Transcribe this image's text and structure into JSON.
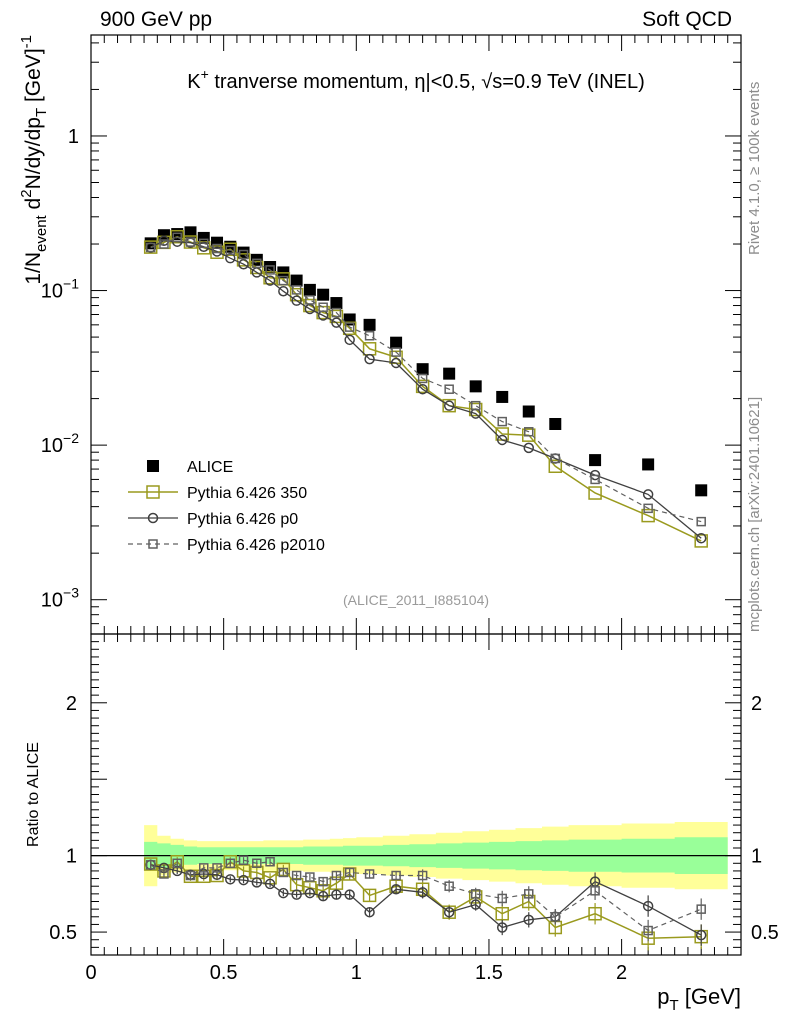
{
  "header": {
    "left": "900 GeV pp",
    "right": "Soft QCD"
  },
  "side_labels": {
    "rivet": "Rivet 4.1.0, ≥ 100k events",
    "mcplots": "mcplots.cern.ch [arXiv:2401.10621]"
  },
  "colors": {
    "data": "#000000",
    "p350": "#9a9a1e",
    "p0": "#404040",
    "p2010": "#606060",
    "band_inner": "#99ff99",
    "band_outer": "#ffff99",
    "ref_line": "#000000",
    "watermark": "#9a9a9a"
  },
  "chart_data": [
    {
      "type": "scatter",
      "panel": "main",
      "title_parts": {
        "particle": "K",
        "charge": "+",
        "text": "tranverse momentum,",
        "eta": "η|<0.5,",
        "sqrt": "√s=0.9 TeV (INEL)"
      },
      "ylabel_parts": {
        "a": "1/N",
        "a_sub": "event",
        "b": " d",
        "b_sup": "2",
        "c": "N/dy/dp",
        "c_sub": "T",
        "d": " [GeV]",
        "d_sup": "-1"
      },
      "yscale": "log",
      "ylim": [
        0.0006,
        4.5
      ],
      "xlim": [
        0,
        2.45
      ],
      "ytick_labels": [
        {
          "value": 0.001,
          "base": "10",
          "exp": "−3"
        },
        {
          "value": 0.01,
          "base": "10",
          "exp": "−2"
        },
        {
          "value": 0.1,
          "base": "10",
          "exp": "−1"
        },
        {
          "value": 1,
          "text": "1"
        }
      ],
      "watermark": "(ALICE_2011_I885104)",
      "x": [
        0.225,
        0.275,
        0.325,
        0.375,
        0.425,
        0.475,
        0.525,
        0.575,
        0.625,
        0.675,
        0.725,
        0.775,
        0.825,
        0.875,
        0.925,
        0.975,
        1.05,
        1.15,
        1.25,
        1.35,
        1.45,
        1.55,
        1.65,
        1.75,
        1.9,
        2.1,
        2.3
      ],
      "series": [
        {
          "name": "ALICE",
          "key": "alice",
          "values": [
            0.202,
            0.228,
            0.232,
            0.238,
            0.219,
            0.204,
            0.192,
            0.176,
            0.158,
            0.142,
            0.131,
            0.116,
            0.101,
            0.094,
            0.083,
            0.065,
            0.06,
            0.046,
            0.031,
            0.029,
            0.024,
            0.0205,
            0.0165,
            0.0137,
            0.008,
            0.0075,
            0.0051
          ]
        },
        {
          "name": "Pythia 6.426 350",
          "key": "p350",
          "values": [
            0.191,
            0.205,
            0.223,
            0.206,
            0.189,
            0.177,
            0.185,
            0.158,
            0.141,
            0.121,
            0.119,
            0.094,
            0.08,
            0.072,
            0.068,
            0.057,
            0.042,
            0.037,
            0.024,
            0.018,
            0.017,
            0.0118,
            0.0116,
            0.0073,
            0.0049,
            0.0035,
            0.0024
          ]
        },
        {
          "name": "Pythia 6.426 p0",
          "key": "p0",
          "values": [
            0.19,
            0.21,
            0.207,
            0.204,
            0.192,
            0.179,
            0.162,
            0.148,
            0.131,
            0.116,
            0.099,
            0.086,
            0.076,
            0.069,
            0.062,
            0.048,
            0.036,
            0.034,
            0.023,
            0.018,
            0.016,
            0.0108,
            0.0096,
            0.0082,
            0.0064,
            0.0048,
            0.0025
          ]
        },
        {
          "name": "Pythia 6.426 p2010",
          "key": "p2010",
          "values": [
            0.19,
            0.2,
            0.221,
            0.206,
            0.202,
            0.187,
            0.182,
            0.171,
            0.15,
            0.136,
            0.116,
            0.101,
            0.087,
            0.078,
            0.072,
            0.058,
            0.051,
            0.04,
            0.027,
            0.023,
            0.018,
            0.0142,
            0.0122,
            0.0082,
            0.006,
            0.0039,
            0.0032
          ]
        }
      ]
    },
    {
      "type": "line",
      "panel": "ratio",
      "ylabel": "Ratio to ALICE",
      "xlabel_parts": {
        "p": "p",
        "sub": "T",
        "unit": " [GeV]"
      },
      "ylim": [
        0.35,
        2.45
      ],
      "xlim": [
        0,
        2.45
      ],
      "ytick_labels": [
        {
          "value": 0.5,
          "text": "0.5"
        },
        {
          "value": 1,
          "text": "1"
        },
        {
          "value": 2,
          "text": "2"
        }
      ],
      "xtick_labels": [
        {
          "value": 0,
          "text": "0"
        },
        {
          "value": 0.5,
          "text": "0.5"
        },
        {
          "value": 1,
          "text": "1"
        },
        {
          "value": 1.5,
          "text": "1.5"
        },
        {
          "value": 2,
          "text": "2"
        }
      ],
      "band_x_edges": [
        0.2,
        0.25,
        0.3,
        0.35,
        0.4,
        0.45,
        0.5,
        0.55,
        0.6,
        0.65,
        0.7,
        0.75,
        0.8,
        0.85,
        0.9,
        0.95,
        1.0,
        1.1,
        1.2,
        1.3,
        1.4,
        1.5,
        1.6,
        1.7,
        1.8,
        2.0,
        2.2,
        2.4
      ],
      "band_inner_halfwidth": [
        0.09,
        0.08,
        0.07,
        0.06,
        0.055,
        0.055,
        0.055,
        0.055,
        0.055,
        0.055,
        0.055,
        0.055,
        0.06,
        0.06,
        0.06,
        0.065,
        0.065,
        0.07,
        0.075,
        0.08,
        0.085,
        0.09,
        0.095,
        0.1,
        0.105,
        0.11,
        0.12
      ],
      "band_outer_halfwidth": [
        0.2,
        0.13,
        0.11,
        0.1,
        0.095,
        0.095,
        0.095,
        0.095,
        0.095,
        0.1,
        0.1,
        0.1,
        0.105,
        0.105,
        0.11,
        0.115,
        0.12,
        0.13,
        0.14,
        0.15,
        0.16,
        0.17,
        0.18,
        0.19,
        0.2,
        0.21,
        0.22
      ],
      "x": [
        0.225,
        0.275,
        0.325,
        0.375,
        0.425,
        0.475,
        0.525,
        0.575,
        0.625,
        0.675,
        0.725,
        0.775,
        0.825,
        0.875,
        0.925,
        0.975,
        1.05,
        1.15,
        1.25,
        1.35,
        1.45,
        1.55,
        1.65,
        1.75,
        1.9,
        2.1,
        2.3
      ],
      "series": [
        {
          "name": "Pythia 6.426 350",
          "key": "p350",
          "values": [
            0.945,
            0.9,
            0.96,
            0.865,
            0.865,
            0.87,
            0.96,
            0.9,
            0.89,
            0.855,
            0.91,
            0.81,
            0.79,
            0.77,
            0.82,
            0.88,
            0.74,
            0.8,
            0.78,
            0.63,
            0.73,
            0.62,
            0.7,
            0.53,
            0.62,
            0.46,
            0.47
          ],
          "errors": [
            0.03,
            0.03,
            0.03,
            0.03,
            0.03,
            0.03,
            0.03,
            0.03,
            0.03,
            0.03,
            0.03,
            0.03,
            0.03,
            0.03,
            0.04,
            0.04,
            0.04,
            0.04,
            0.05,
            0.05,
            0.05,
            0.06,
            0.06,
            0.06,
            0.07,
            0.08,
            0.08
          ]
        },
        {
          "name": "Pythia 6.426 p0",
          "key": "p0",
          "values": [
            0.94,
            0.92,
            0.9,
            0.875,
            0.88,
            0.875,
            0.845,
            0.84,
            0.825,
            0.815,
            0.755,
            0.745,
            0.755,
            0.735,
            0.745,
            0.745,
            0.63,
            0.78,
            0.76,
            0.63,
            0.68,
            0.53,
            0.58,
            0.6,
            0.83,
            0.67,
            0.48
          ],
          "errors": [
            0.02,
            0.02,
            0.02,
            0.02,
            0.02,
            0.02,
            0.02,
            0.02,
            0.02,
            0.02,
            0.02,
            0.02,
            0.02,
            0.03,
            0.03,
            0.03,
            0.03,
            0.03,
            0.04,
            0.04,
            0.04,
            0.05,
            0.05,
            0.05,
            0.06,
            0.07,
            0.07
          ]
        },
        {
          "name": "Pythia 6.426 p2010",
          "key": "p2010",
          "values": [
            0.94,
            0.88,
            0.95,
            0.87,
            0.92,
            0.92,
            0.95,
            0.97,
            0.95,
            0.96,
            0.89,
            0.87,
            0.86,
            0.83,
            0.87,
            0.89,
            0.88,
            0.87,
            0.87,
            0.8,
            0.75,
            0.72,
            0.75,
            0.6,
            0.77,
            0.51,
            0.65
          ],
          "errors": [
            0.02,
            0.02,
            0.02,
            0.02,
            0.02,
            0.02,
            0.02,
            0.02,
            0.02,
            0.02,
            0.02,
            0.02,
            0.02,
            0.03,
            0.03,
            0.03,
            0.03,
            0.03,
            0.04,
            0.04,
            0.04,
            0.05,
            0.05,
            0.05,
            0.06,
            0.07,
            0.07
          ]
        }
      ]
    }
  ]
}
